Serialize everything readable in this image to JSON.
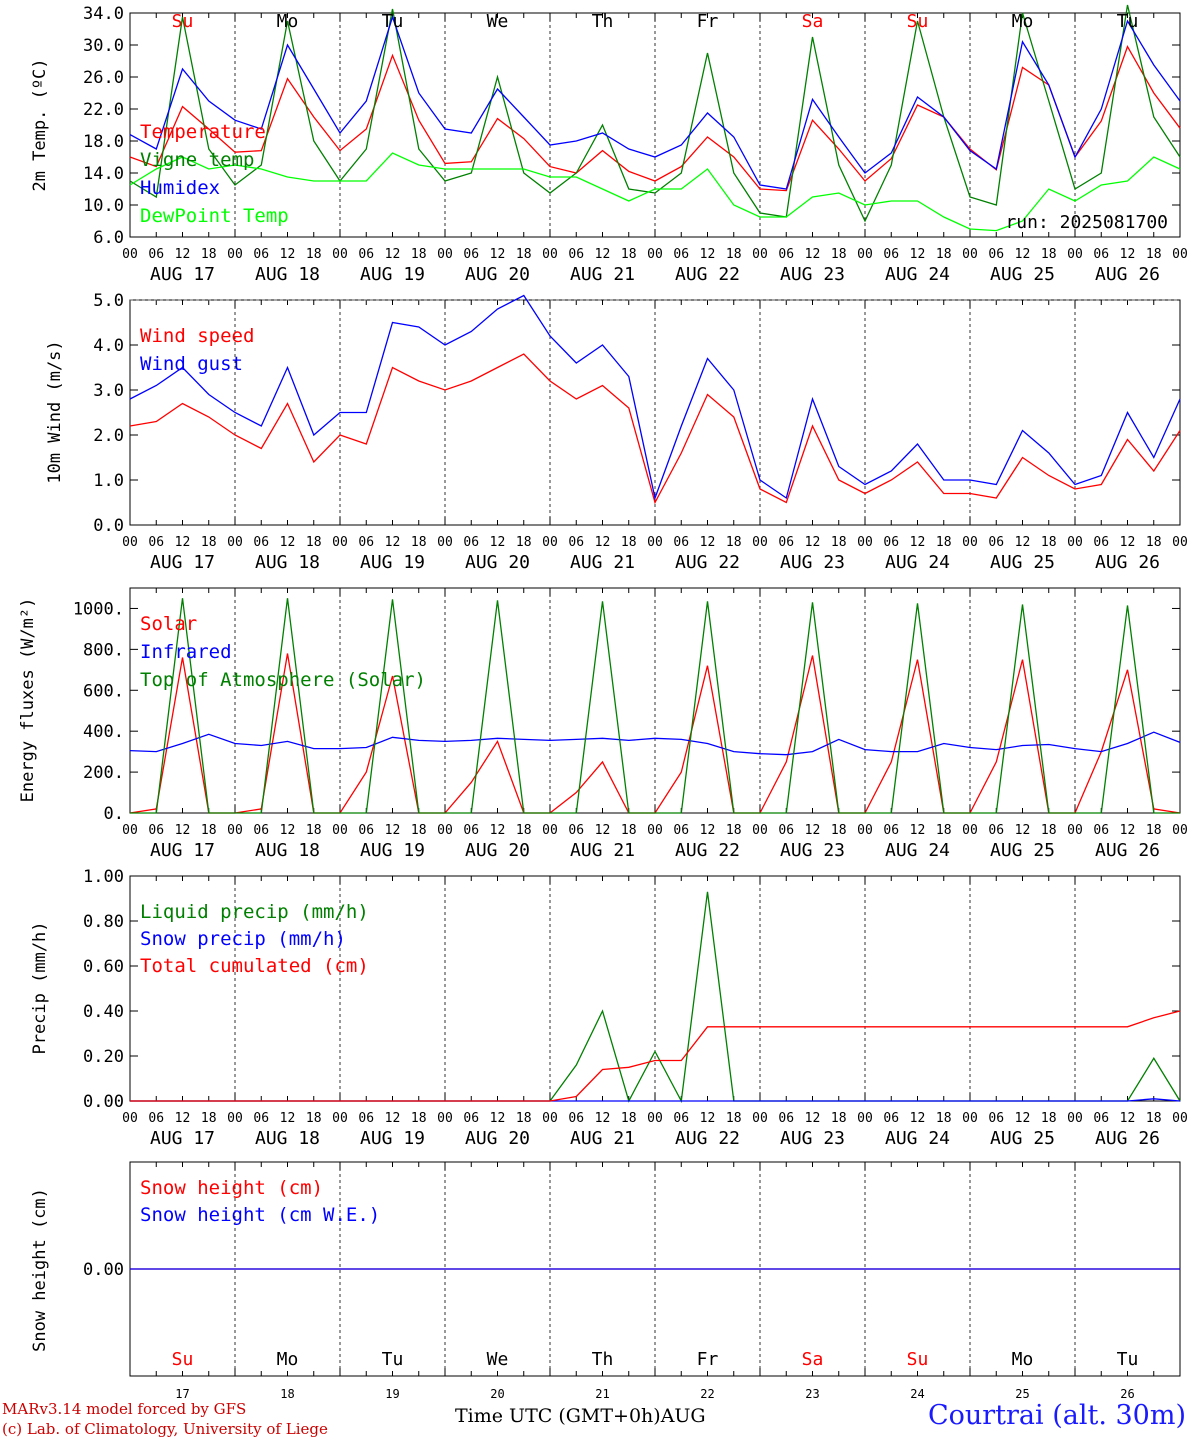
{
  "chart_data": [
    {
      "type": "line",
      "ylabel": "2m Temp. (ºC)",
      "ylim": [
        6.0,
        34.0
      ],
      "yticks": [
        "6.0",
        "10.0",
        "14.0",
        "18.0",
        "22.0",
        "26.0",
        "30.0",
        "34.0"
      ],
      "grid": "vertical dashed at 00 UTC",
      "legend": [
        "Temperature",
        "Vigne temp",
        "Humidex",
        "DewPoint Temp"
      ],
      "annotation": "run: 2025081700",
      "day_labels": [
        "Su",
        "Mo",
        "Tu",
        "We",
        "Th",
        "Fr",
        "Sa",
        "Su",
        "Mo",
        "Tu"
      ],
      "x_hours": [
        0,
        6,
        12,
        18,
        24,
        30,
        36,
        42,
        48,
        54,
        60,
        66,
        72,
        78,
        84,
        90,
        96,
        102,
        108,
        114,
        120,
        126,
        132,
        138,
        144,
        150,
        156,
        162,
        168,
        174,
        180,
        186,
        192,
        198,
        204,
        210,
        216,
        222,
        228,
        234,
        240
      ],
      "series": [
        {
          "name": "Temperature",
          "color": "#ff0000",
          "values": [
            16.0,
            14.8,
            22.3,
            19.5,
            16.6,
            16.8,
            25.8,
            21.0,
            16.8,
            19.5,
            28.7,
            20.6,
            15.2,
            15.4,
            20.8,
            18.3,
            14.8,
            14.0,
            16.8,
            14.2,
            13.0,
            14.8,
            18.5,
            16.0,
            12.0,
            11.8,
            20.6,
            17.0,
            13.0,
            15.8,
            22.5,
            21.0,
            17.0,
            14.4,
            27.2,
            25.0,
            16.0,
            20.5,
            29.8,
            24.0,
            19.6
          ]
        },
        {
          "name": "Vigne temp",
          "color": "#008000",
          "values": [
            13.0,
            11.0,
            33.5,
            17.0,
            12.5,
            15.0,
            33.0,
            18.0,
            13.0,
            17.0,
            34.5,
            17.0,
            13.0,
            14.0,
            26.0,
            14.0,
            11.5,
            14.0,
            20.0,
            12.0,
            11.5,
            14.0,
            29.0,
            14.0,
            9.0,
            8.5,
            31.0,
            15.0,
            8.0,
            15.0,
            33.0,
            21.0,
            11.0,
            10.0,
            34.0,
            23.0,
            12.0,
            14.0,
            35.0,
            21.0,
            16.0
          ]
        },
        {
          "name": "Humidex",
          "color": "#0000ff",
          "values": [
            18.8,
            17.0,
            27.0,
            23.0,
            20.6,
            19.5,
            30.0,
            24.5,
            19.0,
            23.0,
            33.5,
            24.0,
            19.5,
            19.0,
            24.5,
            21.0,
            17.5,
            18.0,
            19.0,
            17.0,
            16.0,
            17.5,
            21.5,
            18.5,
            12.5,
            12.0,
            23.2,
            18.5,
            14.0,
            16.5,
            23.5,
            21.0,
            16.8,
            14.5,
            30.4,
            25.0,
            16.0,
            22.0,
            33.0,
            27.5,
            23.0
          ]
        },
        {
          "name": "DewPoint Temp",
          "color": "#00ff00",
          "values": [
            12.5,
            14.5,
            16.0,
            14.5,
            15.0,
            14.5,
            13.5,
            13.0,
            13.0,
            13.0,
            16.5,
            15.0,
            14.5,
            14.5,
            14.5,
            14.5,
            13.5,
            13.5,
            12.0,
            10.5,
            12.0,
            12.0,
            14.5,
            10.0,
            8.5,
            8.5,
            11.0,
            11.5,
            10.0,
            10.5,
            10.5,
            8.5,
            7.0,
            6.8,
            8.0,
            12.0,
            10.5,
            12.5,
            13.0,
            16.0,
            14.5
          ]
        }
      ]
    },
    {
      "type": "line",
      "ylabel": "10m Wind (m/s)",
      "ylim": [
        0.0,
        5.0
      ],
      "yticks": [
        "0.0",
        "1.0",
        "2.0",
        "3.0",
        "4.0",
        "5.0"
      ],
      "legend": [
        "Wind speed",
        "Wind gust"
      ],
      "x_hours": [
        0,
        6,
        12,
        18,
        24,
        30,
        36,
        42,
        48,
        54,
        60,
        66,
        72,
        78,
        84,
        90,
        96,
        102,
        108,
        114,
        120,
        126,
        132,
        138,
        144,
        150,
        156,
        162,
        168,
        174,
        180,
        186,
        192,
        198,
        204,
        210,
        216,
        222,
        228,
        234,
        240
      ],
      "series": [
        {
          "name": "Wind speed",
          "color": "#ff0000",
          "values": [
            2.2,
            2.3,
            2.7,
            2.4,
            2.0,
            1.7,
            2.7,
            1.4,
            2.0,
            1.8,
            3.5,
            3.2,
            3.0,
            3.2,
            3.5,
            3.8,
            3.2,
            2.8,
            3.1,
            2.6,
            0.5,
            1.6,
            2.9,
            2.4,
            0.8,
            0.5,
            2.2,
            1.0,
            0.7,
            1.0,
            1.4,
            0.7,
            0.7,
            0.6,
            1.5,
            1.1,
            0.8,
            0.9,
            1.9,
            1.2,
            2.1
          ]
        },
        {
          "name": "Wind gust",
          "color": "#0000ff",
          "values": [
            2.8,
            3.1,
            3.5,
            2.9,
            2.5,
            2.2,
            3.5,
            2.0,
            2.5,
            2.5,
            4.5,
            4.4,
            4.0,
            4.3,
            4.8,
            5.1,
            4.2,
            3.6,
            4.0,
            3.3,
            0.6,
            2.2,
            3.7,
            3.0,
            1.0,
            0.6,
            2.8,
            1.3,
            0.9,
            1.2,
            1.8,
            1.0,
            1.0,
            0.9,
            2.1,
            1.6,
            0.9,
            1.1,
            2.5,
            1.5,
            2.8
          ]
        }
      ]
    },
    {
      "type": "line",
      "ylabel": "Energy fluxes (W/m²)",
      "ylim": [
        0,
        1100
      ],
      "yticks": [
        "0.",
        "200.",
        "400.",
        "600.",
        "800.",
        "1000."
      ],
      "legend": [
        "Solar",
        "Infrared",
        "Top of Atmosphere (Solar)"
      ],
      "x_hours": [
        0,
        6,
        12,
        18,
        24,
        30,
        36,
        42,
        48,
        54,
        60,
        66,
        72,
        78,
        84,
        90,
        96,
        102,
        108,
        114,
        120,
        126,
        132,
        138,
        144,
        150,
        156,
        162,
        168,
        174,
        180,
        186,
        192,
        198,
        204,
        210,
        216,
        222,
        228,
        234,
        240
      ],
      "series": [
        {
          "name": "Solar",
          "color": "#ff0000",
          "values": [
            0,
            20,
            760,
            0,
            0,
            20,
            780,
            0,
            0,
            200,
            670,
            0,
            0,
            150,
            350,
            0,
            0,
            100,
            250,
            0,
            0,
            200,
            720,
            0,
            0,
            250,
            770,
            0,
            0,
            250,
            750,
            0,
            0,
            250,
            750,
            0,
            0,
            300,
            700,
            20,
            0
          ]
        },
        {
          "name": "Infrared",
          "color": "#0000ff",
          "values": [
            305,
            300,
            340,
            385,
            340,
            330,
            350,
            315,
            315,
            320,
            370,
            355,
            350,
            355,
            365,
            360,
            355,
            360,
            365,
            355,
            365,
            360,
            340,
            300,
            290,
            285,
            300,
            360,
            310,
            300,
            300,
            340,
            320,
            310,
            330,
            335,
            315,
            300,
            340,
            395,
            345
          ]
        },
        {
          "name": "Top of Atmosphere (Solar)",
          "color": "#008000",
          "values": [
            0,
            0,
            1050,
            0,
            0,
            0,
            1050,
            0,
            0,
            0,
            1045,
            0,
            0,
            0,
            1040,
            0,
            0,
            0,
            1035,
            0,
            0,
            0,
            1035,
            0,
            0,
            0,
            1030,
            0,
            0,
            0,
            1025,
            0,
            0,
            0,
            1020,
            0,
            0,
            0,
            1015,
            0,
            0
          ]
        }
      ]
    },
    {
      "type": "line",
      "ylabel": "Precip (mm/h)",
      "ylim": [
        0.0,
        1.0
      ],
      "yticks": [
        "0.00",
        "0.20",
        "0.40",
        "0.60",
        "0.80",
        "1.00"
      ],
      "legend": [
        "Liquid precip (mm/h)",
        "Snow precip (mm/h)",
        "Total cumulated (cm)"
      ],
      "x_hours": [
        0,
        6,
        12,
        18,
        24,
        30,
        36,
        42,
        48,
        54,
        60,
        66,
        72,
        78,
        84,
        90,
        96,
        102,
        108,
        114,
        120,
        126,
        132,
        138,
        144,
        150,
        156,
        162,
        168,
        174,
        180,
        186,
        192,
        198,
        204,
        210,
        216,
        222,
        228,
        234,
        240
      ],
      "series": [
        {
          "name": "Liquid precip (mm/h)",
          "color": "#008000",
          "values": [
            0,
            0,
            0,
            0,
            0,
            0,
            0,
            0,
            0,
            0,
            0,
            0,
            0,
            0,
            0,
            0,
            0,
            0.16,
            0.4,
            0,
            0.22,
            0,
            0.93,
            0,
            0,
            0,
            0,
            0,
            0,
            0,
            0,
            0,
            0,
            0,
            0,
            0,
            0,
            0,
            0,
            0.19,
            0
          ]
        },
        {
          "name": "Snow precip (mm/h)",
          "color": "#0000ff",
          "values": [
            0,
            0,
            0,
            0,
            0,
            0,
            0,
            0,
            0,
            0,
            0,
            0,
            0,
            0,
            0,
            0,
            0,
            0,
            0,
            0,
            0,
            0,
            0,
            0,
            0,
            0,
            0,
            0,
            0,
            0,
            0,
            0,
            0,
            0,
            0,
            0,
            0,
            0,
            0,
            0.01,
            0
          ]
        },
        {
          "name": "Total cumulated (cm)",
          "color": "#ff0000",
          "values": [
            0,
            0,
            0,
            0,
            0,
            0,
            0,
            0,
            0,
            0,
            0,
            0,
            0,
            0,
            0,
            0,
            0,
            0.02,
            0.14,
            0.15,
            0.18,
            0.18,
            0.33,
            0.33,
            0.33,
            0.33,
            0.33,
            0.33,
            0.33,
            0.33,
            0.33,
            0.33,
            0.33,
            0.33,
            0.33,
            0.33,
            0.33,
            0.33,
            0.33,
            0.37,
            0.4
          ]
        }
      ]
    },
    {
      "type": "line",
      "ylabel": "Snow height (cm)",
      "yticks": [
        "0.00"
      ],
      "legend": [
        "Snow height (cm)",
        "Snow height (cm W.E.)"
      ],
      "day_labels": [
        "Su",
        "Mo",
        "Tu",
        "We",
        "Th",
        "Fr",
        "Sa",
        "Su",
        "Mo",
        "Tu"
      ],
      "day_numbers": [
        "17",
        "18",
        "19",
        "20",
        "21",
        "22",
        "23",
        "24",
        "25",
        "26"
      ],
      "series": [
        {
          "name": "Snow height (cm)",
          "color": "#ff0000",
          "values": [
            0,
            0
          ]
        },
        {
          "name": "Snow height (cm W.E.)",
          "color": "#0000ff",
          "values": [
            0,
            0
          ]
        }
      ]
    }
  ],
  "x_axis": {
    "hour_ticks": [
      "00",
      "06",
      "12",
      "18"
    ],
    "end_tick": "00",
    "dates": [
      "AUG 17",
      "AUG 18",
      "AUG 19",
      "AUG 20",
      "AUG 21",
      "AUG 22",
      "AUG 23",
      "AUG 24",
      "AUG 25",
      "AUG 26"
    ],
    "weekend_days": [
      0,
      6,
      7
    ],
    "label": "Time UTC (GMT+0h)",
    "month": "AUG"
  },
  "colors": {
    "red": "#ff0000",
    "green": "#008000",
    "blue": "#0000ff",
    "lightgreen": "#00ff00",
    "label_blue": "#1a1aff",
    "black": "#000000"
  },
  "footer": {
    "credit_line1": "MARv3.14 model forced by GFS",
    "credit_line2": "(c) Lab. of Climatology, University of Liege",
    "station": "Courtrai (alt. 30m)"
  }
}
